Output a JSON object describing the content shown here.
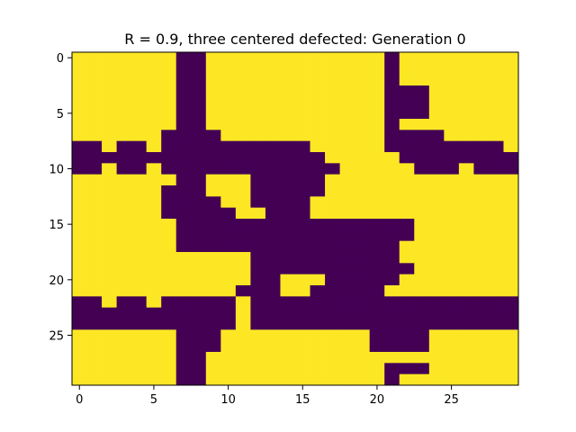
{
  "chart_data": {
    "type": "heatmap",
    "title": "R = 0.9, three centered defected: Generation 0",
    "xlabel": "",
    "ylabel": "",
    "xlim": [
      -0.5,
      29.5
    ],
    "ylim": [
      29.5,
      -0.5
    ],
    "x_ticks": [
      0,
      5,
      10,
      15,
      20,
      25
    ],
    "y_ticks": [
      0,
      5,
      10,
      15,
      20,
      25
    ],
    "colors": {
      "defected": "#440154",
      "cooperator": "#fde725"
    },
    "grid": false,
    "rows": [
      "111111100111111111111011111111",
      "111111100111111111111011111111",
      "111111100111111111111011111111",
      "111111100111111111111000111111",
      "111111100111111111111000111111",
      "111111100111111111111000111111",
      "111111100111111111111011111111",
      "111111000011111111111000011111",
      "001001000000000011111000000001",
      "000000000000000001111100000000",
      "001001000000000000111110001000",
      "111111100111000001111111111111",
      "111111000111000001111111111111",
      "111111000011000011111111111111",
      "111111000001100011111111111111",
      "111111100000000000000001111111",
      "111111100000000000000001111111",
      "111111100000000000000011111111",
      "111111111111000000000011111111",
      "111111111111000000000001111111",
      "111111111111001110000011111111",
      "111111111110001100000111111111",
      "001001000001000000000000000000",
      "000000000001000000000000000000",
      "000000000001000000000000000000",
      "111111100011111111110000111111",
      "111111100011111111110000111111",
      "111111100111111111111111111111",
      "111111100111111111111000111111",
      "111111100111111111111011111111"
    ]
  }
}
